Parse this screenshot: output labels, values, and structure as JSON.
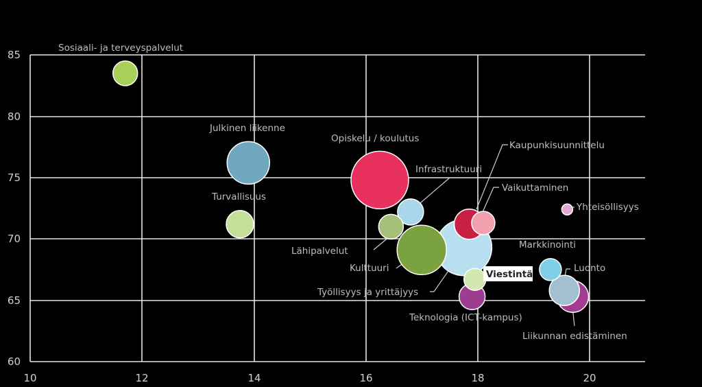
{
  "chart_data": {
    "type": "bubble",
    "xlim": [
      10,
      21
    ],
    "ylim": [
      60,
      85
    ],
    "x_ticks": [
      "10",
      "12",
      "14",
      "16",
      "18",
      "20"
    ],
    "y_ticks": [
      "60",
      "65",
      "70",
      "75",
      "80",
      "85"
    ],
    "grid": true,
    "series": [
      {
        "label": "Sosiaali- ja terveyspalvelut",
        "x": 11.7,
        "y": 83.5,
        "size": 18,
        "color": "#a8cf5a"
      },
      {
        "label": "Julkinen liikenne",
        "x": 13.9,
        "y": 76.2,
        "size": 31,
        "color": "#6fa8bf"
      },
      {
        "label": "Turvallisuus",
        "x": 13.75,
        "y": 71.2,
        "size": 20,
        "color": "#c3df98"
      },
      {
        "label": "Opiskelu / koulutus",
        "x": 16.25,
        "y": 74.8,
        "size": 42,
        "color": "#e8315d"
      },
      {
        "label": "Infrastruktuuri",
        "x": 16.8,
        "y": 72.2,
        "size": 19,
        "color": "#a9d6ea"
      },
      {
        "label": "Lähipalvelut",
        "x": 16.45,
        "y": 71.0,
        "size": 18,
        "color": "#a5bf78"
      },
      {
        "label": "Kulttuuri",
        "x": 17.0,
        "y": 69.1,
        "size": 36,
        "color": "#7aa33f"
      },
      {
        "label": "Kaupunkisuunnittelu",
        "x": 17.85,
        "y": 71.2,
        "size": 22,
        "color": "#c91f45"
      },
      {
        "label": "Työllisyys ja yrittäjyys",
        "x": 17.75,
        "y": 69.3,
        "size": 41,
        "color": "#b8dff0"
      },
      {
        "label": "Vaikuttaminen",
        "x": 18.1,
        "y": 71.3,
        "size": 17,
        "color": "#f2a0ad"
      },
      {
        "label": "Viestintä",
        "x": 17.95,
        "y": 66.7,
        "size": 16,
        "color": "#d3e8b0"
      },
      {
        "label": "Teknologia (ICT-kampus)",
        "x": 17.9,
        "y": 65.3,
        "size": 19,
        "color": "#9e3d8f"
      },
      {
        "label": "Yhteisöllisyys",
        "x": 19.6,
        "y": 72.4,
        "size": 8,
        "color": "#e2a9d6"
      },
      {
        "label": "Markkinointi",
        "x": 19.3,
        "y": 67.5,
        "size": 16,
        "color": "#7fcfe6"
      },
      {
        "label": "Liikunnan edistäminen",
        "x": 19.7,
        "y": 65.3,
        "size": 23,
        "color": "#a23b91"
      },
      {
        "label": "Luonto",
        "x": 19.55,
        "y": 65.8,
        "size": 22,
        "color": "#a2c0cf"
      }
    ]
  }
}
